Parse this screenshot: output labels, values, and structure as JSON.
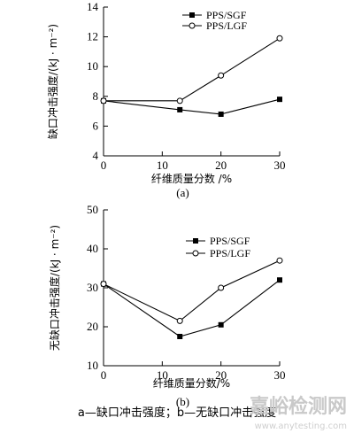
{
  "chart_data": [
    {
      "type": "line",
      "panel_label": "(a)",
      "xlabel": "纤维质量分数 /%",
      "ylabel": "缺口冲击强度/(kJ · m⁻²)",
      "x": [
        0,
        13,
        20,
        30
      ],
      "xlim": [
        0,
        30
      ],
      "ylim": [
        4,
        14
      ],
      "xticks": [
        0,
        10,
        20,
        30
      ],
      "yticks": [
        4,
        6,
        8,
        10,
        12,
        14
      ],
      "legend_position": "top-right",
      "series": [
        {
          "name": "PPS/SGF",
          "marker": "square",
          "values": [
            7.7,
            7.1,
            6.8,
            7.8
          ]
        },
        {
          "name": "PPS/LGF",
          "marker": "circle",
          "values": [
            7.7,
            7.7,
            9.4,
            11.9
          ]
        }
      ]
    },
    {
      "type": "line",
      "panel_label": "(b)",
      "xlabel": "纤维质量分数/%",
      "ylabel": "无缺口冲击强度/(kJ · m⁻²)",
      "x": [
        0,
        13,
        20,
        30
      ],
      "xlim": [
        0,
        30
      ],
      "ylim": [
        10,
        50
      ],
      "xticks": [
        0,
        10,
        20,
        30
      ],
      "yticks": [
        10,
        20,
        30,
        40,
        50
      ],
      "legend_position": "right",
      "series": [
        {
          "name": "PPS/SGF",
          "marker": "square",
          "values": [
            31,
            17.5,
            20.5,
            32
          ]
        },
        {
          "name": "PPS/LGF",
          "marker": "circle",
          "values": [
            31,
            21.5,
            30,
            37
          ]
        }
      ]
    }
  ],
  "caption": "a—缺口冲击强度；b—无缺口冲击强度",
  "watermark": {
    "main": "嘉峪检测网",
    "sub": "www.anytesting.com"
  }
}
